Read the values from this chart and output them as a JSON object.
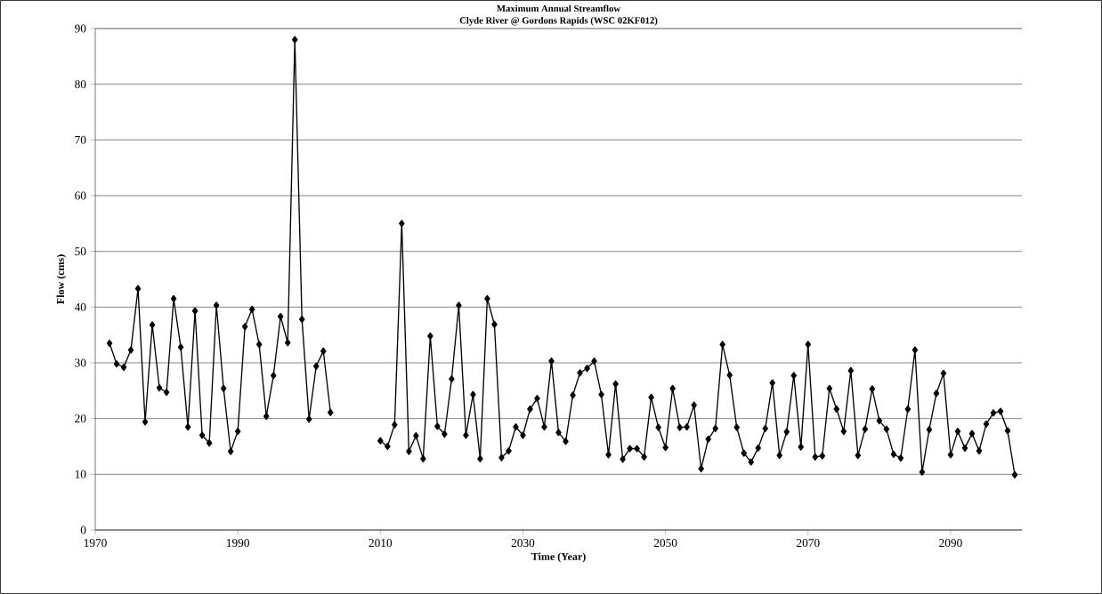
{
  "chart_data": {
    "type": "line",
    "title": "Maximum Annual Streamflow",
    "subtitle": "Clyde River @ Gordons Rapids (WSC 02KF012)",
    "xlabel": "Time (Year)",
    "ylabel": "Flow (cms)",
    "x": [
      1972,
      1973,
      1974,
      1975,
      1976,
      1977,
      1978,
      1979,
      1980,
      1981,
      1982,
      1983,
      1984,
      1985,
      1986,
      1987,
      1988,
      1989,
      1990,
      1991,
      1992,
      1993,
      1994,
      1995,
      1996,
      1997,
      1998,
      1999,
      2000,
      2001,
      2002,
      2003,
      2004,
      2005,
      2006,
      2007,
      2008,
      2009,
      2010,
      2011,
      2012,
      2013,
      2014,
      2015,
      2016,
      2017,
      2018,
      2019,
      2020,
      2021,
      2022,
      2023,
      2024,
      2025,
      2026,
      2027,
      2028,
      2029,
      2030,
      2031,
      2032,
      2033,
      2034,
      2035,
      2036,
      2037,
      2038,
      2039,
      2040,
      2041,
      2042,
      2043,
      2044,
      2045,
      2046,
      2047,
      2048,
      2049,
      2050,
      2051,
      2052,
      2053,
      2054,
      2055,
      2056,
      2057,
      2058,
      2059,
      2060,
      2061,
      2062,
      2063,
      2064,
      2065,
      2066,
      2067,
      2068,
      2069,
      2070,
      2071,
      2072,
      2073,
      2074,
      2075,
      2076,
      2077,
      2078,
      2079,
      2080,
      2081,
      2082,
      2083,
      2084,
      2085,
      2086,
      2087,
      2088,
      2089,
      2090,
      2091,
      2092,
      2093,
      2094,
      2095,
      2096,
      2097,
      2098,
      2099
    ],
    "values": [
      33.5,
      29.8,
      29.2,
      32.3,
      43.3,
      19.4,
      36.8,
      25.5,
      24.7,
      41.5,
      32.8,
      18.5,
      39.3,
      17.0,
      15.6,
      40.3,
      25.4,
      14.1,
      17.7,
      36.5,
      39.6,
      33.3,
      20.4,
      27.7,
      38.3,
      33.6,
      88.0,
      37.8,
      19.9,
      29.4,
      32.1,
      21.1,
      null,
      null,
      null,
      null,
      null,
      null,
      16.0,
      15.0,
      18.9,
      55.0,
      14.1,
      16.9,
      12.8,
      34.8,
      18.6,
      17.2,
      27.1,
      40.3,
      17.0,
      24.3,
      12.8,
      41.5,
      36.9,
      13.0,
      14.2,
      18.5,
      17.0,
      21.7,
      23.6,
      18.5,
      30.3,
      17.5,
      15.9,
      24.2,
      28.2,
      29.0,
      30.3,
      24.3,
      13.5,
      26.2,
      12.7,
      14.6,
      14.6,
      13.1,
      23.8,
      18.4,
      14.8,
      25.4,
      18.4,
      18.5,
      22.4,
      11.0,
      16.3,
      18.2,
      33.3,
      27.8,
      18.4,
      13.8,
      12.2,
      14.7,
      18.2,
      26.4,
      13.4,
      17.6,
      27.7,
      14.9,
      33.3,
      13.1,
      13.3,
      25.4,
      21.7,
      17.7,
      28.6,
      13.4,
      18.1,
      25.3,
      19.6,
      18.1,
      13.6,
      12.9,
      21.7,
      32.3,
      10.4,
      18.0,
      24.5,
      28.1,
      13.5,
      17.7,
      14.7,
      17.3,
      14.2,
      19.0,
      21.0,
      21.3,
      17.8,
      9.9
    ],
    "color": "#000000",
    "marker": "diamond",
    "line_style": "solid",
    "grid": "y",
    "xlim": [
      1970,
      2100
    ],
    "ylim": [
      0,
      90
    ],
    "xticks": [
      1970,
      1990,
      2010,
      2030,
      2050,
      2070,
      2090
    ],
    "yticks": [
      0,
      10,
      20,
      30,
      40,
      50,
      60,
      70,
      80,
      90
    ]
  }
}
